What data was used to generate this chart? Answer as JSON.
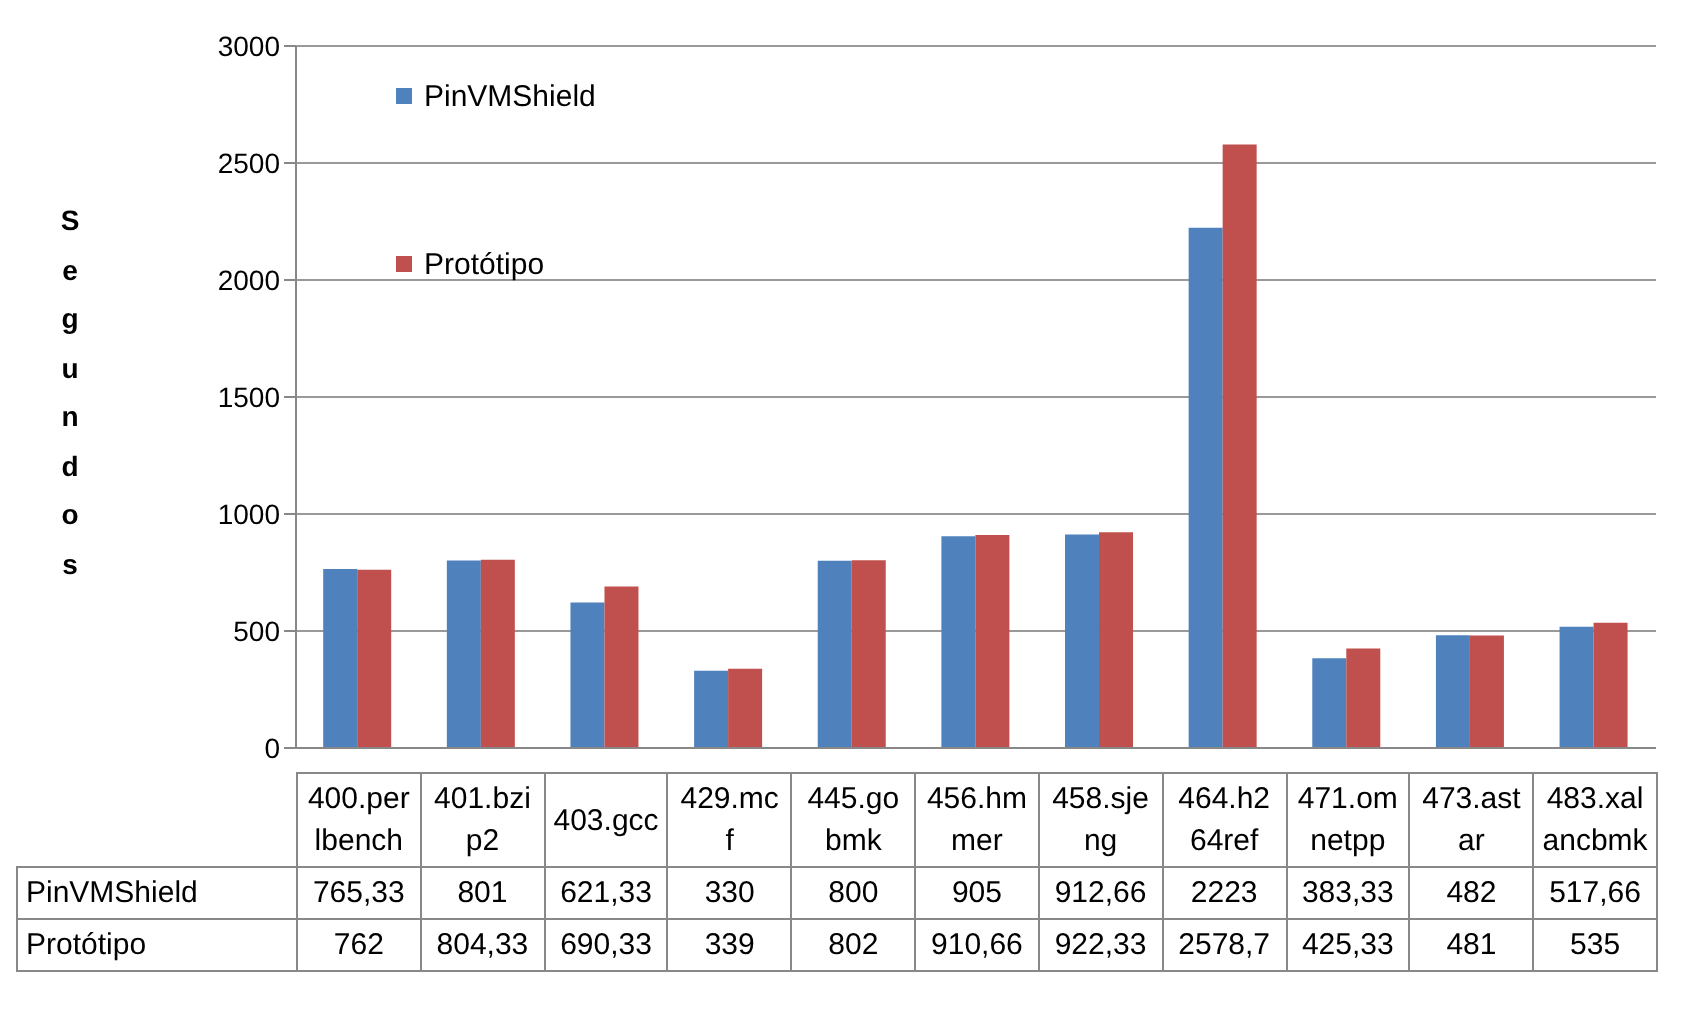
{
  "chart_data": {
    "type": "bar",
    "ylabel": "Segundos",
    "categories": [
      "400.perlbench",
      "401.bzip2",
      "403.gcc",
      "429.mcf",
      "445.gobmk",
      "456.hmmer",
      "458.sjeng",
      "464.h264ref",
      "471.omnetpp",
      "473.astar",
      "483.xalancbmk"
    ],
    "series": [
      {
        "name": "PinVMShield",
        "color": "#4f81bd",
        "values": [
          765.33,
          801,
          621.33,
          330,
          800,
          905,
          912.66,
          2223,
          383.33,
          482,
          517.66
        ],
        "value_labels": [
          "765,33",
          "801",
          "621,33",
          "330",
          "800",
          "905",
          "912,66",
          "2223",
          "383,33",
          "482",
          "517,66"
        ]
      },
      {
        "name": "Protótipo",
        "color": "#c0504d",
        "values": [
          762,
          804.33,
          690.33,
          339,
          802,
          910.66,
          922.33,
          2578.7,
          425.33,
          481,
          535
        ],
        "value_labels": [
          "762",
          "804,33",
          "690,33",
          "339",
          "802",
          "910,66",
          "922,33",
          "2578,7",
          "425,33",
          "481",
          "535"
        ]
      }
    ],
    "ylim": [
      0,
      3000
    ],
    "yticks": [
      0,
      500,
      1000,
      1500,
      2000,
      2500,
      3000
    ],
    "grid": "y",
    "legend": "top left",
    "data_labels": true
  }
}
